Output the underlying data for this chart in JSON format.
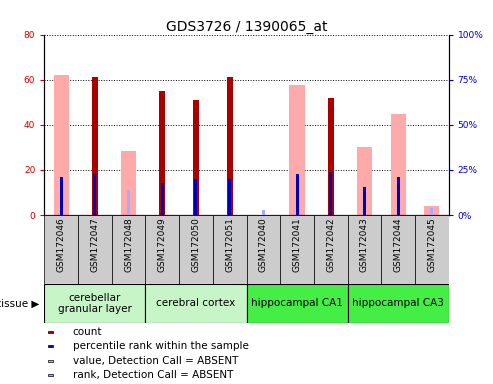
{
  "title": "GDS3726 / 1390065_at",
  "samples": [
    "GSM172046",
    "GSM172047",
    "GSM172048",
    "GSM172049",
    "GSM172050",
    "GSM172051",
    "GSM172040",
    "GSM172041",
    "GSM172042",
    "GSM172043",
    "GSM172044",
    "GSM172045"
  ],
  "count_values": [
    0,
    61,
    0,
    55,
    51,
    61,
    0,
    0,
    52,
    0,
    0,
    0
  ],
  "percentile_values": [
    21,
    22.5,
    0,
    18,
    20,
    20,
    0,
    22.5,
    24,
    15.5,
    21,
    0
  ],
  "absent_value_values": [
    62,
    0,
    28.5,
    0,
    0,
    0,
    0,
    57.5,
    0,
    30,
    45,
    4
  ],
  "absent_rank_values": [
    0,
    0,
    14,
    0,
    0,
    0,
    3,
    0,
    0,
    0,
    0,
    4
  ],
  "ylim_left": [
    0,
    80
  ],
  "ylim_right": [
    0,
    100
  ],
  "yticks_left": [
    0,
    20,
    40,
    60,
    80
  ],
  "yticks_right": [
    0,
    25,
    50,
    75,
    100
  ],
  "ytick_labels_left": [
    "0",
    "20",
    "40",
    "60",
    "80"
  ],
  "ytick_labels_right": [
    "0%",
    "25%",
    "50%",
    "75%",
    "100%"
  ],
  "tissue_groups": [
    {
      "label": "cerebellar\ngranular layer",
      "start": 0,
      "end": 3,
      "color": "#c8f5c8"
    },
    {
      "label": "cerebral cortex",
      "start": 3,
      "end": 6,
      "color": "#c8f5c8"
    },
    {
      "label": "hippocampal CA1",
      "start": 6,
      "end": 9,
      "color": "#44ee44"
    },
    {
      "label": "hippocampal CA3",
      "start": 9,
      "end": 12,
      "color": "#44ee44"
    }
  ],
  "color_count": "#aa0000",
  "color_percentile": "#0000bb",
  "color_absent_value": "#ffaaaa",
  "color_absent_rank": "#aaaaff",
  "title_fontsize": 10,
  "tick_fontsize": 6.5,
  "legend_fontsize": 7.5,
  "tissue_fontsize": 7.5,
  "ylabel_left_color": "#cc0000",
  "ylabel_right_color": "#0000cc",
  "sample_bg_color": "#cccccc"
}
